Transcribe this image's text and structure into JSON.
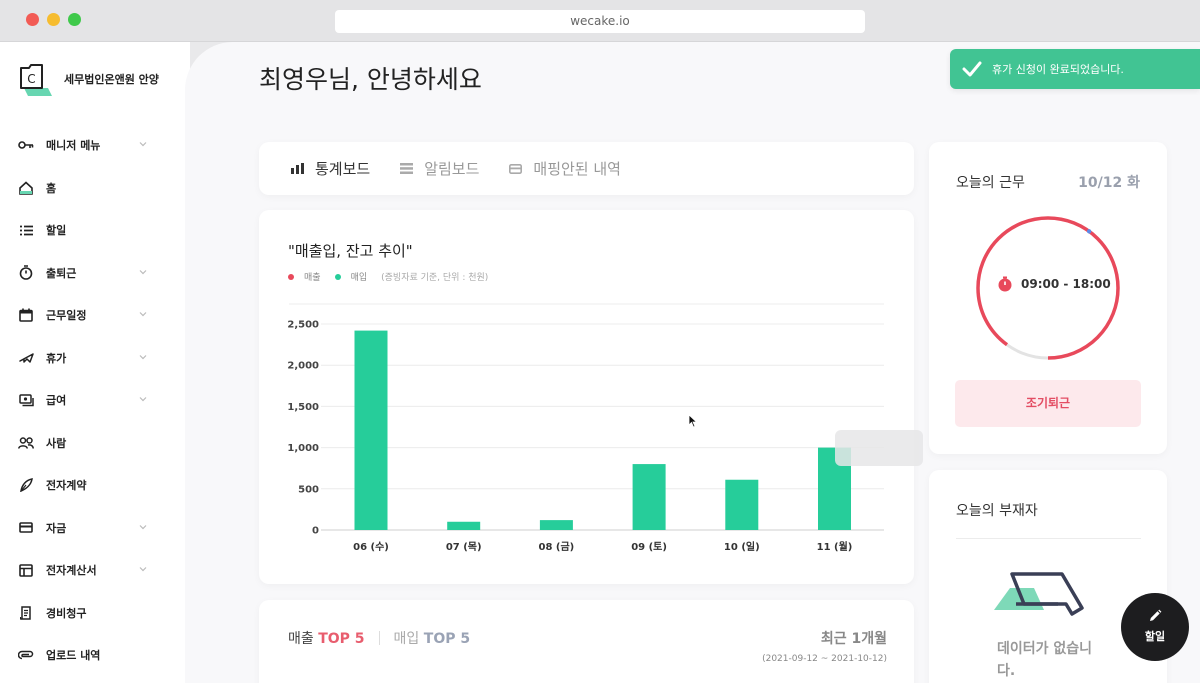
{
  "browser": {
    "url": "wecake.io"
  },
  "brand": {
    "name": "세무법인온앤원 안양"
  },
  "sidebar": {
    "items": [
      {
        "label": "매니저 메뉴",
        "icon": "key-icon",
        "has_chevron": true
      },
      {
        "label": "홈",
        "icon": "home-icon",
        "has_chevron": false
      },
      {
        "label": "할일",
        "icon": "list-icon",
        "has_chevron": false
      },
      {
        "label": "출퇴근",
        "icon": "stopwatch-icon",
        "has_chevron": true
      },
      {
        "label": "근무일정",
        "icon": "calendar-icon",
        "has_chevron": true
      },
      {
        "label": "휴가",
        "icon": "plane-icon",
        "has_chevron": true
      },
      {
        "label": "급여",
        "icon": "payroll-icon",
        "has_chevron": true
      },
      {
        "label": "사람",
        "icon": "people-icon",
        "has_chevron": false
      },
      {
        "label": "전자계약",
        "icon": "pen-icon",
        "has_chevron": false
      },
      {
        "label": "자금",
        "icon": "card-icon",
        "has_chevron": true
      },
      {
        "label": "전자계산서",
        "icon": "invoice-icon",
        "has_chevron": true
      },
      {
        "label": "경비청구",
        "icon": "receipt-icon",
        "has_chevron": false
      },
      {
        "label": "업로드 내역",
        "icon": "clip-icon",
        "has_chevron": false
      }
    ]
  },
  "greeting": "최영우님, 안녕하세요",
  "tabs": [
    {
      "label": "통계보드",
      "icon": "bar-chart-icon",
      "active": true
    },
    {
      "label": "알림보드",
      "icon": "list-lines-icon",
      "active": false
    },
    {
      "label": "매핑안된 내역",
      "icon": "card-outline-icon",
      "active": false
    }
  ],
  "chart_section": {
    "title": "\"매출입, 잔고 추이\"",
    "legend": [
      {
        "label": "매출",
        "color": "#e8495b"
      },
      {
        "label": "매입",
        "color": "#26cd9a"
      }
    ],
    "note": "(증빙자료 기준, 단위 : 천원)"
  },
  "chart_data": {
    "type": "bar",
    "categories": [
      "06 (수)",
      "07 (목)",
      "08 (금)",
      "09 (토)",
      "10 (일)",
      "11 (월)"
    ],
    "series": [
      {
        "name": "매입",
        "values": [
          2420,
          100,
          120,
          800,
          610,
          1000
        ],
        "color": "#26cd9a"
      }
    ],
    "yticks": [
      "0",
      "500",
      "1,000",
      "1,500",
      "2,000",
      "2,500"
    ],
    "ylim": [
      0,
      2500
    ],
    "grid": true,
    "legend_position": "top-left"
  },
  "top5": {
    "sales_label": "매출",
    "sales_accent": "TOP 5",
    "purchase_label": "매입",
    "purchase_accent": "TOP 5",
    "period_label": "최근 1개월",
    "period_range": "(2021-09-12 ~ 2021-10-12)"
  },
  "work_today": {
    "title": "오늘의 근무",
    "date": "10/12 화",
    "hours": "09:00 - 18:00",
    "progress": 0.9,
    "early_leave_button": "조기퇴근",
    "ring_color": "#e8495b"
  },
  "absent_today": {
    "title": "오늘의 부재자",
    "no_data_text": "데이터가 없습니다."
  },
  "toast": {
    "message": "휴가 신청이 완료되었습니다."
  },
  "fab": {
    "label": "할일"
  }
}
